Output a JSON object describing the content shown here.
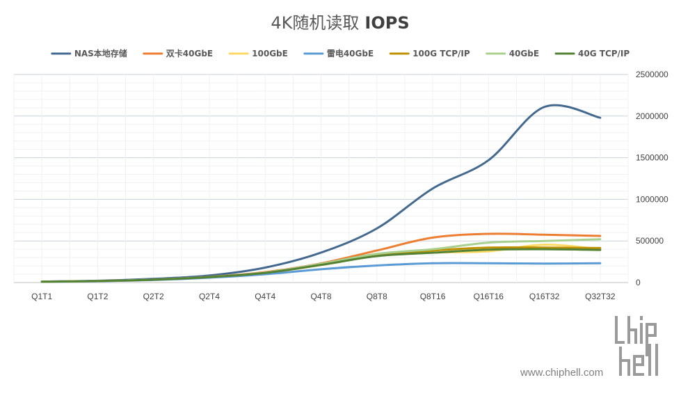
{
  "chart_data": {
    "type": "line",
    "title": "4K随机读取",
    "title_bold": "IOPS",
    "categories": [
      "Q1T1",
      "Q1T2",
      "Q2T2",
      "Q2T4",
      "Q4T4",
      "Q4T8",
      "Q8T8",
      "Q8T16",
      "Q16T16",
      "Q16T32",
      "Q32T32"
    ],
    "ylim": [
      0,
      2500000
    ],
    "yticks": [
      0,
      500000,
      1000000,
      1500000,
      2000000,
      2500000
    ],
    "y_axis_side": "right",
    "legend_position": "top",
    "grid": true,
    "series": [
      {
        "name": "NAS本地存储",
        "color": "#44698f",
        "values": [
          12000,
          22000,
          45000,
          85000,
          180000,
          360000,
          650000,
          1130000,
          1470000,
          2110000,
          1980000
        ]
      },
      {
        "name": "双卡40GbE",
        "color": "#ed7d31",
        "values": [
          10000,
          18000,
          35000,
          68000,
          125000,
          230000,
          385000,
          540000,
          585000,
          575000,
          560000
        ]
      },
      {
        "name": "100GbE",
        "color": "#ffd966",
        "values": [
          10000,
          18000,
          34000,
          65000,
          115000,
          210000,
          320000,
          360000,
          375000,
          455000,
          400000
        ]
      },
      {
        "name": "雷电40GbE",
        "color": "#5b9bd5",
        "values": [
          9000,
          16000,
          30000,
          58000,
          100000,
          160000,
          205000,
          232000,
          232000,
          228000,
          232000
        ]
      },
      {
        "name": "100G TCP/IP",
        "color": "#bf9000",
        "values": [
          10000,
          18000,
          34000,
          66000,
          118000,
          215000,
          330000,
          385000,
          420000,
          420000,
          415000
        ]
      },
      {
        "name": "40GbE",
        "color": "#a9d08e",
        "values": [
          10000,
          18000,
          35000,
          67000,
          120000,
          225000,
          345000,
          400000,
          480000,
          500000,
          520000
        ]
      },
      {
        "name": "40G TCP/IP",
        "color": "#548235",
        "values": [
          10000,
          18000,
          34000,
          66000,
          116000,
          212000,
          318000,
          358000,
          395000,
          400000,
          392000
        ]
      }
    ]
  },
  "watermark": {
    "text": "www.chiphell.com",
    "logo_text": "chip hell"
  }
}
